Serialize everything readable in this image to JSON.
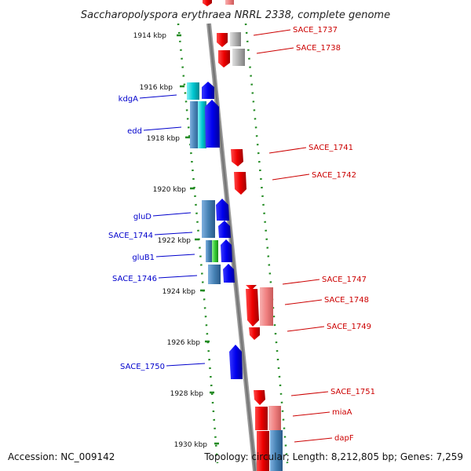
{
  "header": {
    "title": "Saccharopolyspora erythraea NRRL 2338, complete genome"
  },
  "scale": {
    "ticks": [
      "1914 kbp",
      "1916 kbp",
      "1918 kbp",
      "1920 kbp",
      "1922 kbp",
      "1924 kbp",
      "1926 kbp",
      "1928 kbp",
      "1930 kbp"
    ]
  },
  "genes_left": [
    "kdgA",
    "edd",
    "gluD",
    "SACE_1744",
    "gluB1",
    "SACE_1746",
    "SACE_1750"
  ],
  "genes_right": [
    "SACE_1737",
    "SACE_1738",
    "SACE_1741",
    "SACE_1742",
    "SACE_1747",
    "SACE_1748",
    "SACE_1749",
    "SACE_1751",
    "miaA",
    "dapF"
  ],
  "footer": {
    "accession": "Accession: NC_009142",
    "summary": "Topology: circular; Length: 8,212,805 bp; Genes: 7,259"
  },
  "colors": {
    "forward": "#0000ee",
    "reverse": "#ee0000",
    "reverse_light": "#f08080",
    "teal": "#3f7fbf",
    "cyan": "#00c8d2",
    "green": "#33cc33",
    "grey": "#a0a0a0",
    "backbone": "#808080",
    "ring": "#228b22"
  }
}
